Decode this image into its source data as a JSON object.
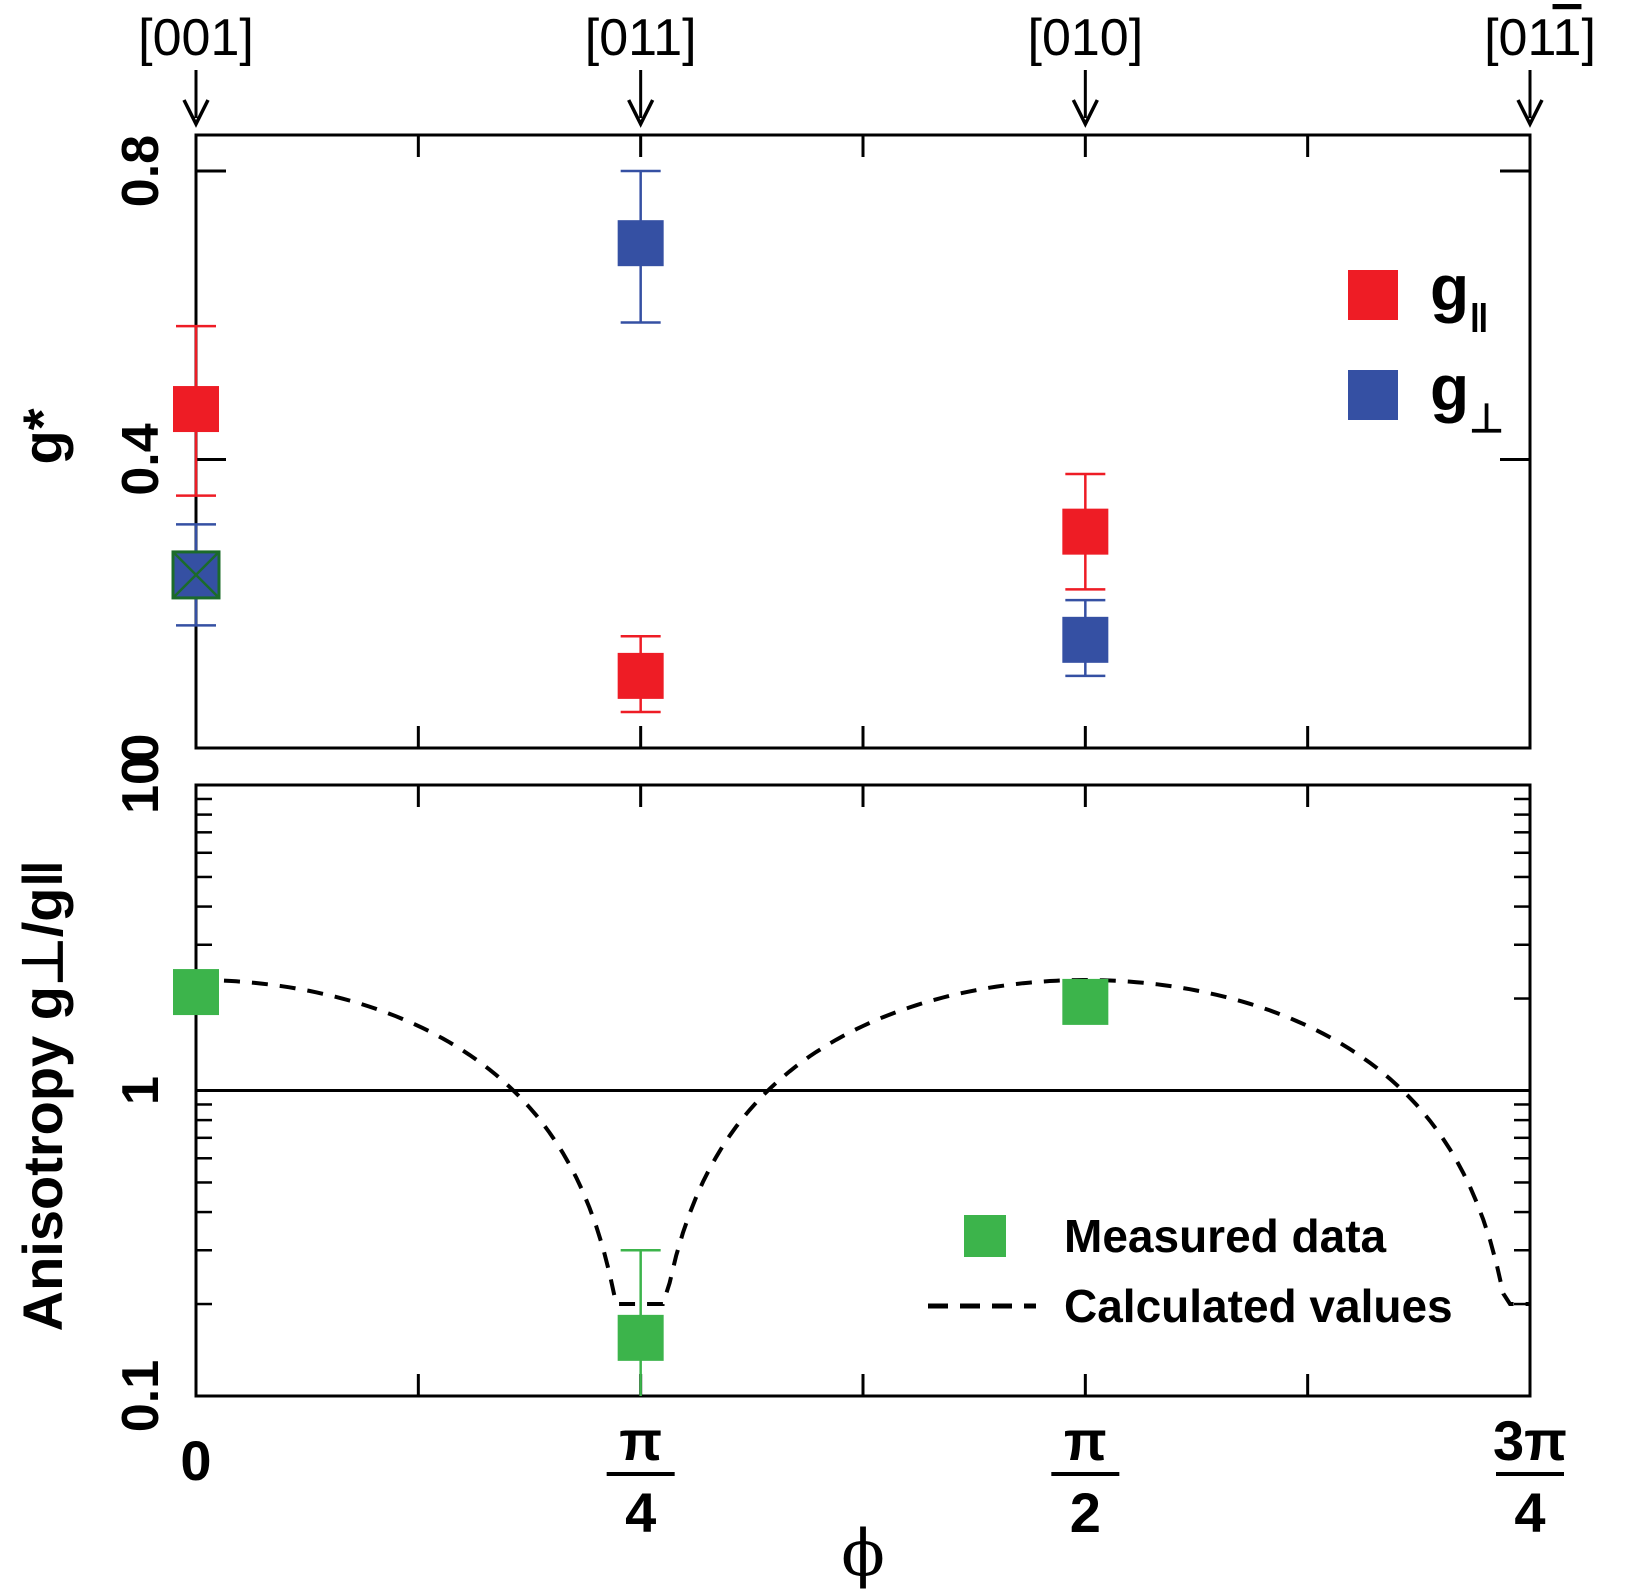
{
  "chart_data": [
    {
      "type": "scatter",
      "ylabel": "g*",
      "ylim": [
        0,
        0.85
      ],
      "yticks": [
        "0",
        "0.4",
        "0.8"
      ],
      "yticks_values": [
        0,
        0.4,
        0.8
      ],
      "top_axis_labels": [
        "[001]",
        "[011]",
        "[010]",
        "[01̅]"
      ],
      "top_axis_base": [
        "[001]",
        "[011]",
        "[010]",
        "[01"
      ],
      "top_axis_bar_digit": "1",
      "top_axis_tail": "]",
      "x_positions": [
        0,
        0.7854,
        1.5708,
        2.3562
      ],
      "legend_placement": "right",
      "series": [
        {
          "name": "g",
          "name_sub": "‖",
          "color": "#ee1c25",
          "points": [
            {
              "x": 0,
              "y": 0.47,
              "err_low": 0.35,
              "err_high": 0.585
            },
            {
              "x": 0.7854,
              "y": 0.1,
              "err_low": 0.05,
              "err_high": 0.155
            },
            {
              "x": 1.5708,
              "y": 0.3,
              "err_low": 0.22,
              "err_high": 0.38
            }
          ]
        },
        {
          "name": "g",
          "name_sub": "⊥",
          "color": "#3550a3",
          "points": [
            {
              "x": 0,
              "y": 0.24,
              "err_low": 0.17,
              "err_high": 0.31
            },
            {
              "x": 0.7854,
              "y": 0.7,
              "err_low": 0.59,
              "err_high": 0.8
            },
            {
              "x": 1.5708,
              "y": 0.15,
              "err_low": 0.1,
              "err_high": 0.205
            }
          ]
        }
      ]
    },
    {
      "type": "scatter",
      "ylabel": "Anisotropy g⊥/g‖",
      "yscale": "log",
      "ylim": [
        0.1,
        10
      ],
      "yticks": [
        "0.1",
        "1",
        "10"
      ],
      "yticks_values": [
        0.1,
        1,
        10
      ],
      "reference_line_y": 1,
      "xlabel": "ϕ",
      "xlim": [
        0,
        2.3562
      ],
      "xticks": [
        {
          "value": 0,
          "num": "0",
          "den": ""
        },
        {
          "value": 0.7854,
          "num": "π",
          "den": "4"
        },
        {
          "value": 1.5708,
          "num": "π",
          "den": "2"
        },
        {
          "value": 2.3562,
          "num": "3π",
          "den": "4"
        }
      ],
      "legend_placement": "bottom-right",
      "series": [
        {
          "name": "Measured data",
          "color": "#3cb44b",
          "points": [
            {
              "x": 0,
              "y": 2.1
            },
            {
              "x": 0.7854,
              "y": 0.155,
              "err_low": 0.1,
              "err_high": 0.3
            },
            {
              "x": 1.5708,
              "y": 1.95
            }
          ]
        },
        {
          "name": "Calculated values",
          "style": "dashed",
          "color": "#000000",
          "model": "y = 2.3 * |cos(2x)| clipped at min 0.2"
        }
      ]
    }
  ]
}
